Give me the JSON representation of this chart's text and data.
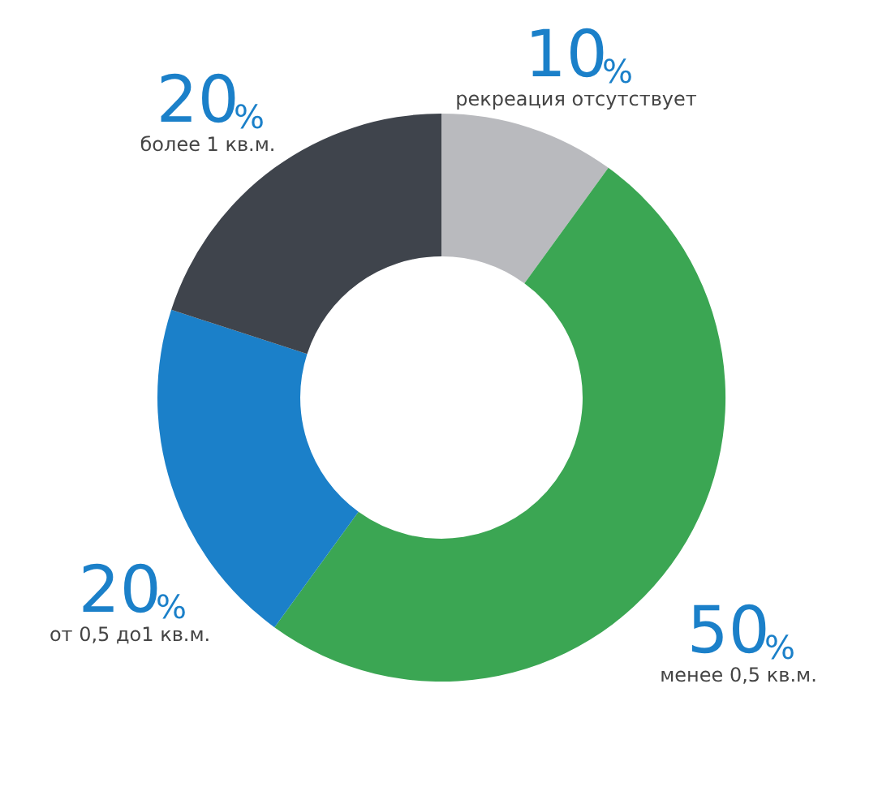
{
  "chart_data": {
    "type": "donut",
    "categories": [
      "рекреация отсутствует",
      "менее 0,5 кв.м.",
      "от 0,5 до1 кв.м.",
      "более 1 кв.м."
    ],
    "values": [
      10,
      50,
      20,
      20
    ],
    "value_labels": [
      "10%",
      "50%",
      "20%",
      "20%"
    ],
    "colors": [
      "#b9babe",
      "#3ba653",
      "#1b80c9",
      "#3f444c"
    ],
    "legend": false
  }
}
